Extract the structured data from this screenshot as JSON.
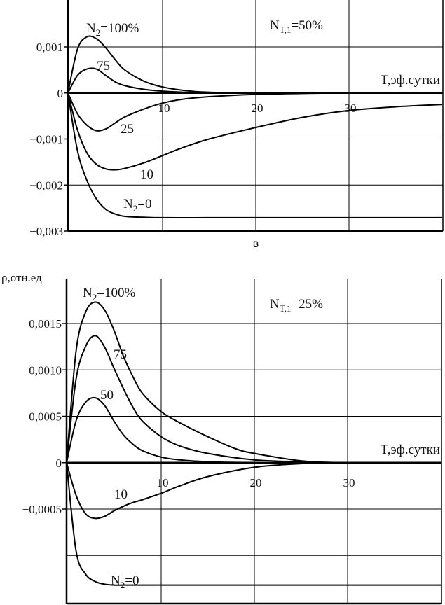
{
  "chart_data": [
    {
      "type": "line",
      "panel_label": "в",
      "xlabel": "T,эф.сутки",
      "ylabel": "",
      "xlim": [
        0,
        40
      ],
      "ylim": [
        -0.003,
        0.002
      ],
      "x_ticks": [
        10,
        20,
        30
      ],
      "x_tick_labels": [
        "10",
        "20",
        "30"
      ],
      "y_ticks": [
        0.001,
        0,
        -0.001,
        -0.002,
        -0.003
      ],
      "y_tick_labels": [
        "0,001",
        "0",
        "−0,001",
        "−0,002",
        "−0,003"
      ],
      "grid": true,
      "parameter": "N_T,1 = 50%",
      "parameter_text": {
        "main": "N",
        "sub": "T,1",
        "rest": "=50%"
      },
      "curve_labels": [
        {
          "series": "100",
          "main": "N",
          "sub": "2",
          "rest": "=100%"
        },
        {
          "series": "75",
          "main": "75",
          "sub": "",
          "rest": ""
        },
        {
          "series": "25",
          "main": "25",
          "sub": "",
          "rest": ""
        },
        {
          "series": "10",
          "main": "10",
          "sub": "",
          "rest": ""
        },
        {
          "series": "0",
          "main": "N",
          "sub": "2",
          "rest": "=0"
        }
      ],
      "series": [
        {
          "name": "100",
          "x": [
            0,
            1,
            2,
            3,
            4,
            5,
            6,
            8,
            10,
            13,
            16,
            20,
            30,
            40
          ],
          "y": [
            0,
            0.00095,
            0.00122,
            0.00118,
            0.00098,
            0.00072,
            0.0005,
            0.00026,
            0.00013,
            4e-05,
            1e-05,
            0,
            0,
            0
          ]
        },
        {
          "name": "75",
          "x": [
            0,
            1,
            2,
            3,
            4,
            5,
            6,
            8,
            10,
            13,
            16,
            20,
            30,
            40
          ],
          "y": [
            0,
            0.00038,
            0.00052,
            0.00052,
            0.00038,
            0.00024,
            0.00016,
            8e-05,
            4e-05,
            1e-05,
            0,
            0,
            0,
            0
          ]
        },
        {
          "name": "25",
          "x": [
            0,
            1,
            2,
            3,
            4,
            5,
            6,
            8,
            10,
            12,
            15,
            20,
            25,
            30,
            40
          ],
          "y": [
            0,
            -0.00045,
            -0.0007,
            -0.00082,
            -0.00078,
            -0.00065,
            -0.00052,
            -0.00035,
            -0.00022,
            -0.00014,
            -8e-05,
            -3e-05,
            -1e-05,
            0,
            0
          ]
        },
        {
          "name": "10",
          "x": [
            0,
            1,
            2,
            3,
            4,
            5,
            6,
            8,
            10,
            12,
            15,
            20,
            25,
            30,
            35,
            40
          ],
          "y": [
            0,
            -0.0008,
            -0.0013,
            -0.00155,
            -0.00165,
            -0.00167,
            -0.00164,
            -0.00152,
            -0.00136,
            -0.0012,
            -0.001,
            -0.00075,
            -0.00053,
            -0.00038,
            -0.0003,
            -0.00025
          ]
        },
        {
          "name": "0",
          "x": [
            0,
            1,
            2,
            3,
            4,
            5,
            6,
            8,
            10,
            15,
            20,
            30,
            40
          ],
          "y": [
            0,
            -0.00125,
            -0.0019,
            -0.0023,
            -0.00253,
            -0.00263,
            -0.00268,
            -0.0027,
            -0.00271,
            -0.00271,
            -0.00271,
            -0.00271,
            -0.00271
          ]
        }
      ]
    },
    {
      "type": "line",
      "panel_label": "",
      "xlabel": "T,эф.сутки",
      "ylabel": "ρ,отн.ед",
      "xlim": [
        0,
        40
      ],
      "ylim": [
        -0.0014,
        0.002
      ],
      "x_ticks": [
        10,
        20,
        30
      ],
      "x_tick_labels": [
        "10",
        "20",
        "30"
      ],
      "y_ticks": [
        0.0015,
        0.001,
        0.0005,
        0,
        -0.0005
      ],
      "y_tick_labels": [
        "0,0015",
        "0,0010",
        "0,0005",
        "0",
        "−0,0005"
      ],
      "grid": true,
      "parameter": "N_T,1 = 25%",
      "parameter_text": {
        "main": "N",
        "sub": "T,1",
        "rest": "=25%"
      },
      "curve_labels": [
        {
          "series": "100",
          "main": "N",
          "sub": "2",
          "rest": "=100%"
        },
        {
          "series": "75",
          "main": "75",
          "sub": "",
          "rest": ""
        },
        {
          "series": "50",
          "main": "50",
          "sub": "",
          "rest": ""
        },
        {
          "series": "10",
          "main": "10",
          "sub": "",
          "rest": ""
        },
        {
          "series": "0",
          "main": "N",
          "sub": "2",
          "rest": "=0"
        }
      ],
      "series": [
        {
          "name": "100",
          "x": [
            0,
            1,
            2,
            3,
            4,
            5,
            6,
            7,
            8,
            10,
            12,
            15,
            18,
            20,
            25,
            30,
            40
          ],
          "y": [
            0,
            0.0012,
            0.00162,
            0.00173,
            0.00165,
            0.00143,
            0.00115,
            0.00093,
            0.00075,
            0.00055,
            0.00043,
            0.00028,
            0.00015,
            0.0001,
            2e-05,
            0,
            0
          ]
        },
        {
          "name": "75",
          "x": [
            0,
            1,
            2,
            3,
            4,
            5,
            6,
            7,
            8,
            10,
            12,
            15,
            20,
            25,
            30,
            40
          ],
          "y": [
            0,
            0.0009,
            0.00125,
            0.00137,
            0.00125,
            0.00102,
            0.0008,
            0.0006,
            0.00045,
            0.00028,
            0.00018,
            0.0001,
            3e-05,
            1e-05,
            0,
            0
          ]
        },
        {
          "name": "50",
          "x": [
            0,
            1,
            2,
            3,
            4,
            5,
            6,
            7,
            8,
            10,
            12,
            15,
            20,
            30,
            40
          ],
          "y": [
            0,
            0.00045,
            0.00065,
            0.0007,
            0.00062,
            0.00045,
            0.0003,
            0.0002,
            0.00013,
            6e-05,
            3e-05,
            1e-05,
            0,
            0,
            0
          ]
        },
        {
          "name": "10",
          "x": [
            0,
            1,
            2,
            3,
            4,
            5,
            6,
            7,
            8,
            10,
            12,
            15,
            20,
            25,
            30,
            40
          ],
          "y": [
            0,
            -0.00035,
            -0.00055,
            -0.0006,
            -0.00058,
            -0.00052,
            -0.00047,
            -0.00043,
            -0.0004,
            -0.00033,
            -0.00025,
            -0.00015,
            -5e-05,
            -1e-05,
            0,
            0
          ]
        },
        {
          "name": "0",
          "x": [
            0,
            1,
            2,
            3,
            4,
            5,
            6,
            8,
            10,
            15,
            20,
            30,
            40
          ],
          "y": [
            0,
            -0.00095,
            -0.0012,
            -0.00128,
            -0.00131,
            -0.00132,
            -0.00132,
            -0.00132,
            -0.00132,
            -0.00132,
            -0.00132,
            -0.00132,
            -0.00132
          ]
        }
      ]
    }
  ]
}
